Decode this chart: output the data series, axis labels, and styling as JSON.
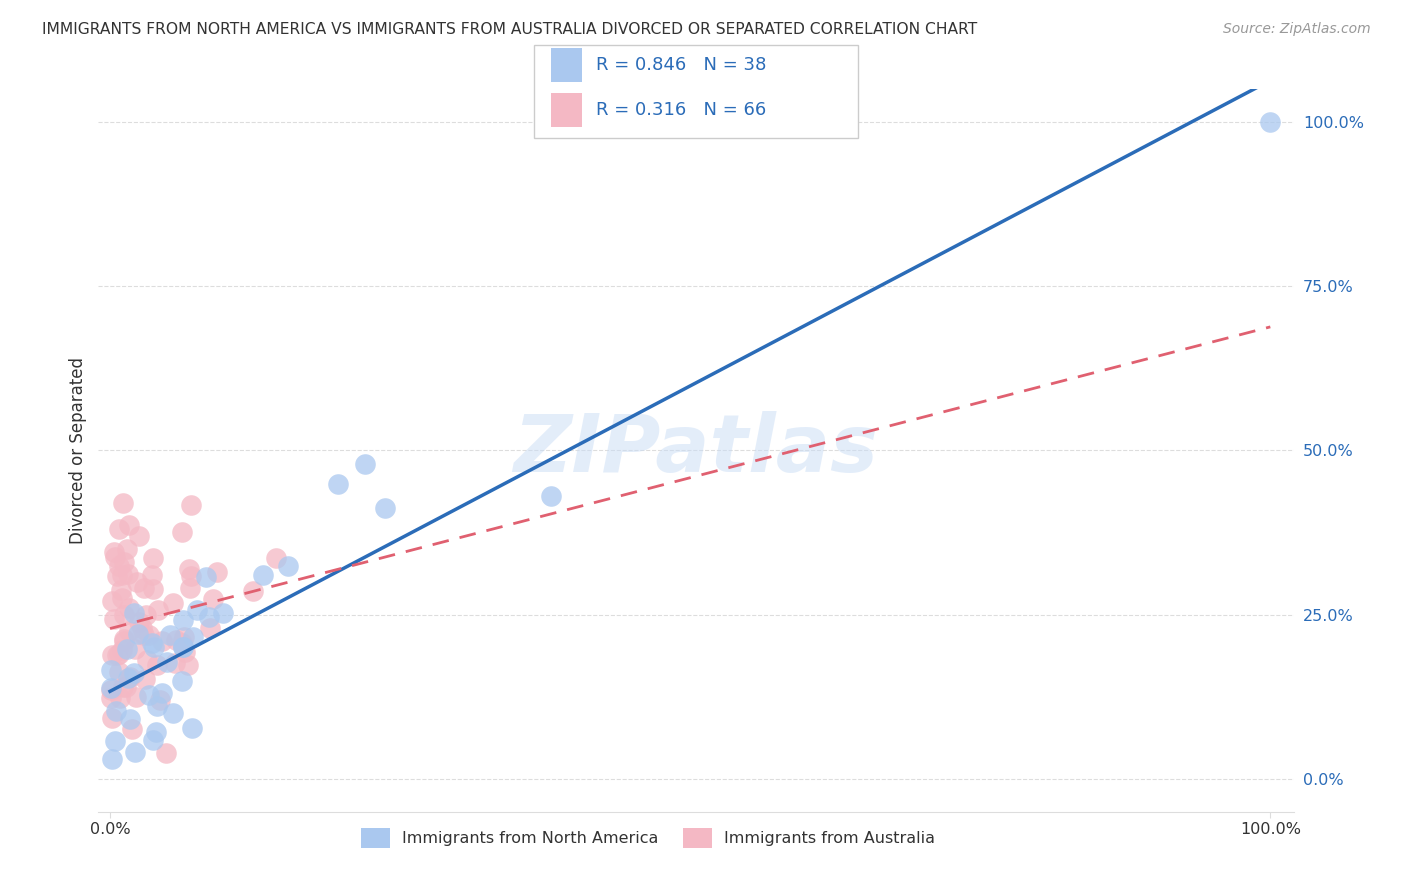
{
  "title": "IMMIGRANTS FROM NORTH AMERICA VS IMMIGRANTS FROM AUSTRALIA DIVORCED OR SEPARATED CORRELATION CHART",
  "source": "Source: ZipAtlas.com",
  "ylabel": "Divorced or Separated",
  "r1": "0.846",
  "n1": "38",
  "r2": "0.316",
  "n2": "66",
  "color1": "#aac8ef",
  "color2": "#f4b8c4",
  "line_color1": "#2b6cb8",
  "line_color2": "#e06070",
  "background_color": "#ffffff",
  "watermark_text": "ZIPatlas",
  "legend_label1": "Immigrants from North America",
  "legend_label2": "Immigrants from Australia",
  "grid_color": "#dddddd",
  "text_color": "#333333",
  "axis_label_color": "#2b6cb8"
}
